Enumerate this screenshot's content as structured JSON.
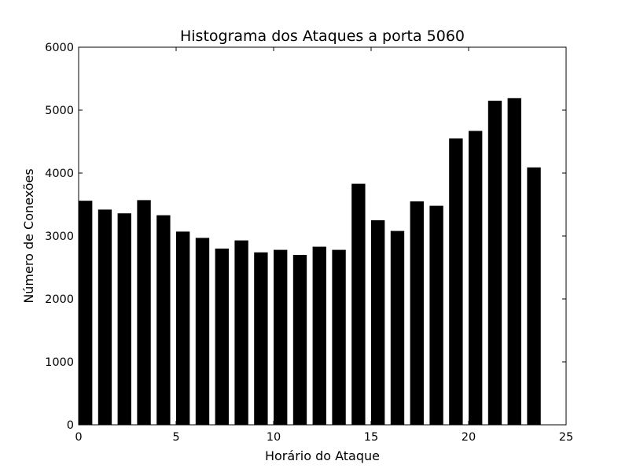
{
  "chart_data": {
    "type": "bar",
    "title": "Histograma dos Ataques a porta 5060",
    "xlabel": "Horário do Ataque",
    "ylabel": "Número de Conexões",
    "xlim": [
      0,
      25
    ],
    "ylim": [
      0,
      6000
    ],
    "x_ticks": [
      0,
      5,
      10,
      15,
      20,
      25
    ],
    "y_ticks": [
      0,
      1000,
      2000,
      3000,
      4000,
      5000,
      6000
    ],
    "bar_width": 0.7,
    "bar_color": "#000000",
    "grid": false,
    "x": [
      0,
      1,
      2,
      3,
      4,
      5,
      6,
      7,
      8,
      9,
      10,
      11,
      12,
      13,
      14,
      15,
      16,
      17,
      18,
      19,
      20,
      21,
      22,
      23
    ],
    "values": [
      3560,
      3420,
      3360,
      3570,
      3330,
      3070,
      2970,
      2800,
      2930,
      2740,
      2780,
      2700,
      2830,
      2780,
      3830,
      3250,
      3080,
      3550,
      3480,
      4550,
      4670,
      5150,
      5190,
      4090
    ]
  }
}
